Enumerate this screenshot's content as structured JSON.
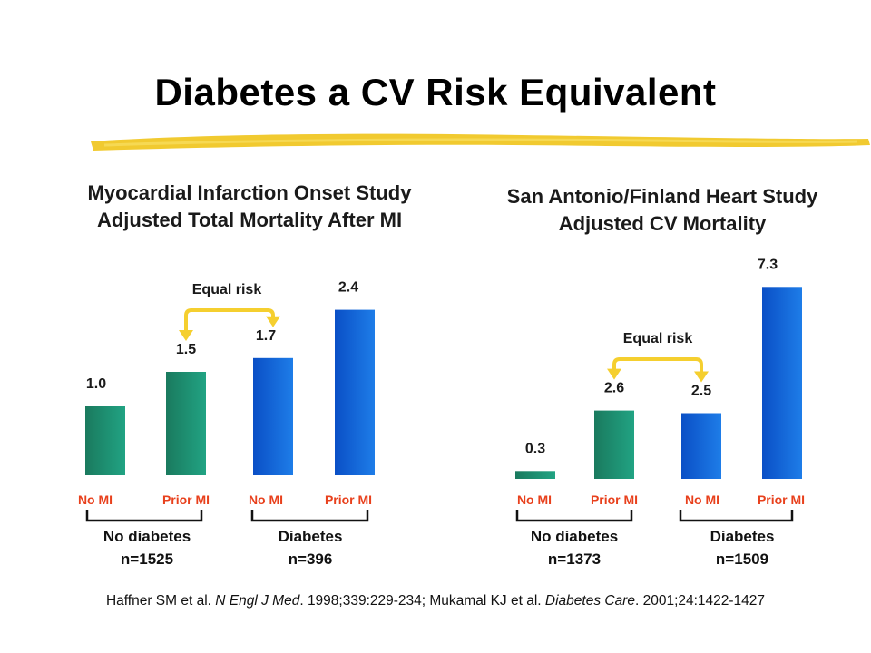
{
  "title": "Diabetes a CV Risk Equivalent",
  "colors": {
    "teal_dark": "#1a7a5e",
    "teal_light": "#21a383",
    "blue_dark": "#0a4fc6",
    "blue_light": "#1e7de8",
    "category_text": "#e8401c",
    "equal_risk_arrow": "#f5cf2f",
    "brush": "#f0c419"
  },
  "footer": {
    "part1": "Haffner SM et al. ",
    "journal1": "N Engl J Med",
    "part2": ". 1998;339:229-234; Mukamal KJ et al. ",
    "journal2": "Diabetes Care",
    "part3": ". 2001;24:1422-1427"
  },
  "chart_data": [
    {
      "type": "bar",
      "title_line1": "Myocardial Infarction Onset Study",
      "title_line2": "Adjusted Total Mortality After MI",
      "categories": [
        "No MI",
        "Prior MI",
        "No MI",
        "Prior MI"
      ],
      "values": [
        1.0,
        1.5,
        1.7,
        2.4
      ],
      "value_labels": [
        "1.0",
        "1.5",
        "1.7",
        "2.4"
      ],
      "groups": [
        {
          "line1": "No diabetes",
          "line2": "n=1525"
        },
        {
          "line1": "Diabetes",
          "line2": "n=396"
        }
      ],
      "annotation": "Equal risk"
    },
    {
      "type": "bar",
      "title_line1": "San Antonio/Finland Heart Study",
      "title_line2": "Adjusted CV Mortality",
      "categories": [
        "No MI",
        "Prior MI",
        "No MI",
        "Prior MI"
      ],
      "values": [
        0.3,
        2.6,
        2.5,
        7.3
      ],
      "value_labels": [
        "0.3",
        "2.6",
        "2.5",
        "7.3"
      ],
      "groups": [
        {
          "line1": "No diabetes",
          "line2": "n=1373"
        },
        {
          "line1": "Diabetes",
          "line2": "n=1509"
        }
      ],
      "annotation": "Equal risk"
    }
  ]
}
